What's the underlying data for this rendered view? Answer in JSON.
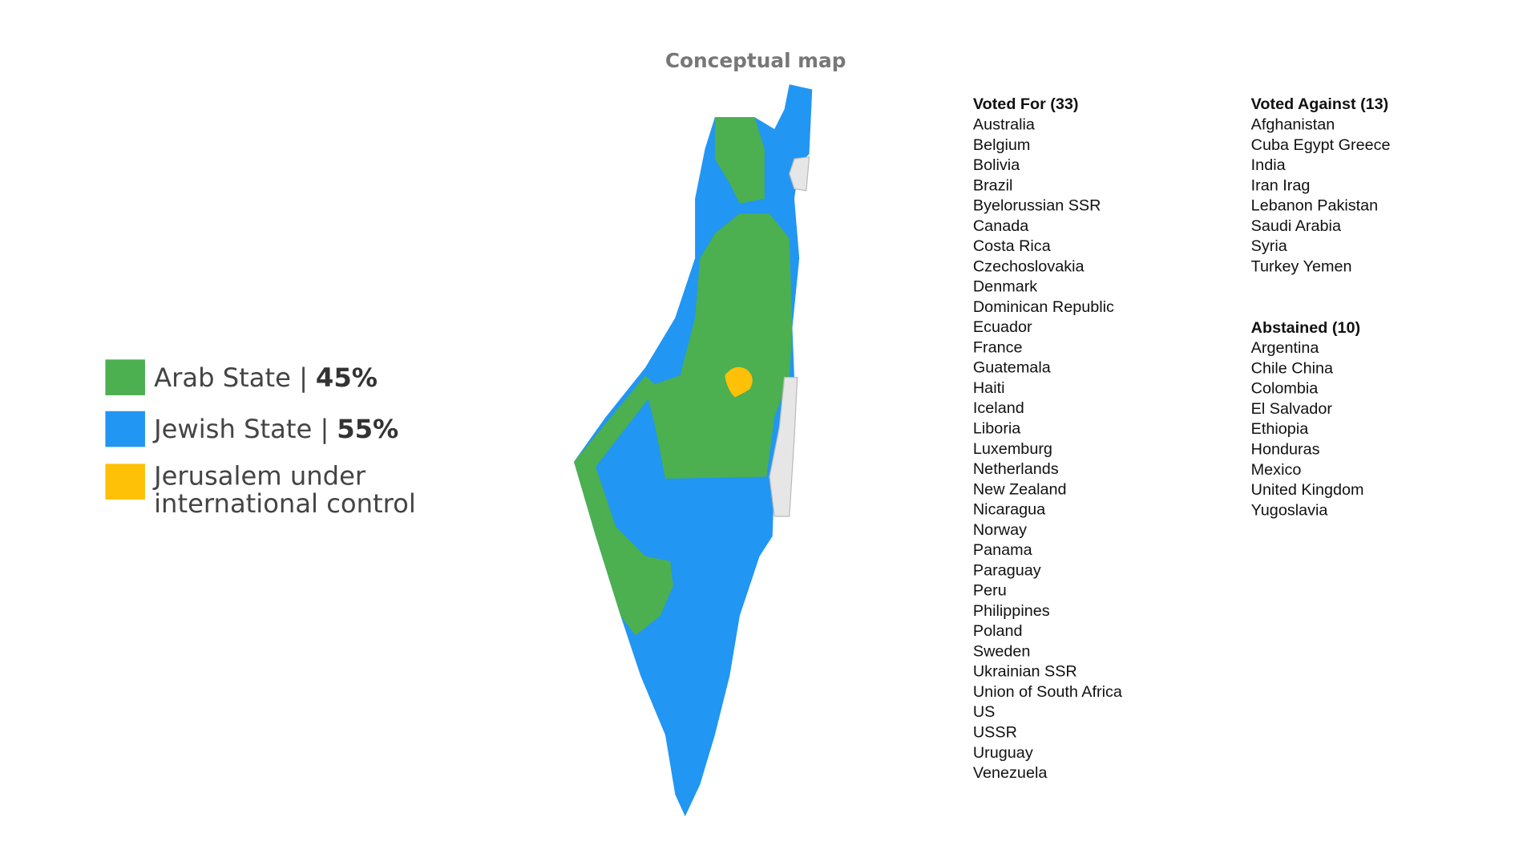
{
  "map": {
    "title": "Conceptual map"
  },
  "legend": [
    {
      "label": "Arab State |",
      "share": "45%",
      "color": "#4caf50"
    },
    {
      "label": "Jewish State |",
      "share": "55%",
      "color": "#2196f3"
    },
    {
      "lines": [
        "Jerusalem under",
        "international control"
      ],
      "color": "#ffc107"
    }
  ],
  "votes": [
    {
      "heading": "Voted For (33)",
      "items": [
        "Australia",
        "Belgium",
        "Bolivia",
        "Brazil",
        "Byelorussian SSR",
        "Canada",
        "Costa Rica",
        "Czechoslovakia",
        "Denmark",
        "Dominican Republic",
        "Ecuador",
        "France",
        "Guatemala",
        "Haiti",
        "Iceland",
        "Liboria",
        "Luxemburg",
        "Netherlands",
        "New Zealand",
        "Nicaragua",
        "Norway",
        "Panama",
        "Paraguay",
        "Peru",
        "Philippines",
        "Poland",
        "Sweden",
        "Ukrainian SSR",
        "Union of South Africa",
        "US",
        "USSR",
        "Uruguay",
        "Venezuela"
      ]
    },
    {
      "heading": "Voted Against (13)",
      "items": [
        "Afghanistan",
        "Cuba Egypt Greece",
        "India",
        "Iran Irag",
        "Lebanon Pakistan",
        "Saudi Arabia",
        "Syria",
        "Turkey Yemen"
      ]
    },
    {
      "heading": "Abstained (10)",
      "items": [
        "Argentina",
        "Chile China",
        "Colombia",
        "El Salvador",
        "Ethiopia",
        "Honduras",
        "Mexico",
        "United Kingdom",
        "Yugoslavia"
      ]
    }
  ]
}
